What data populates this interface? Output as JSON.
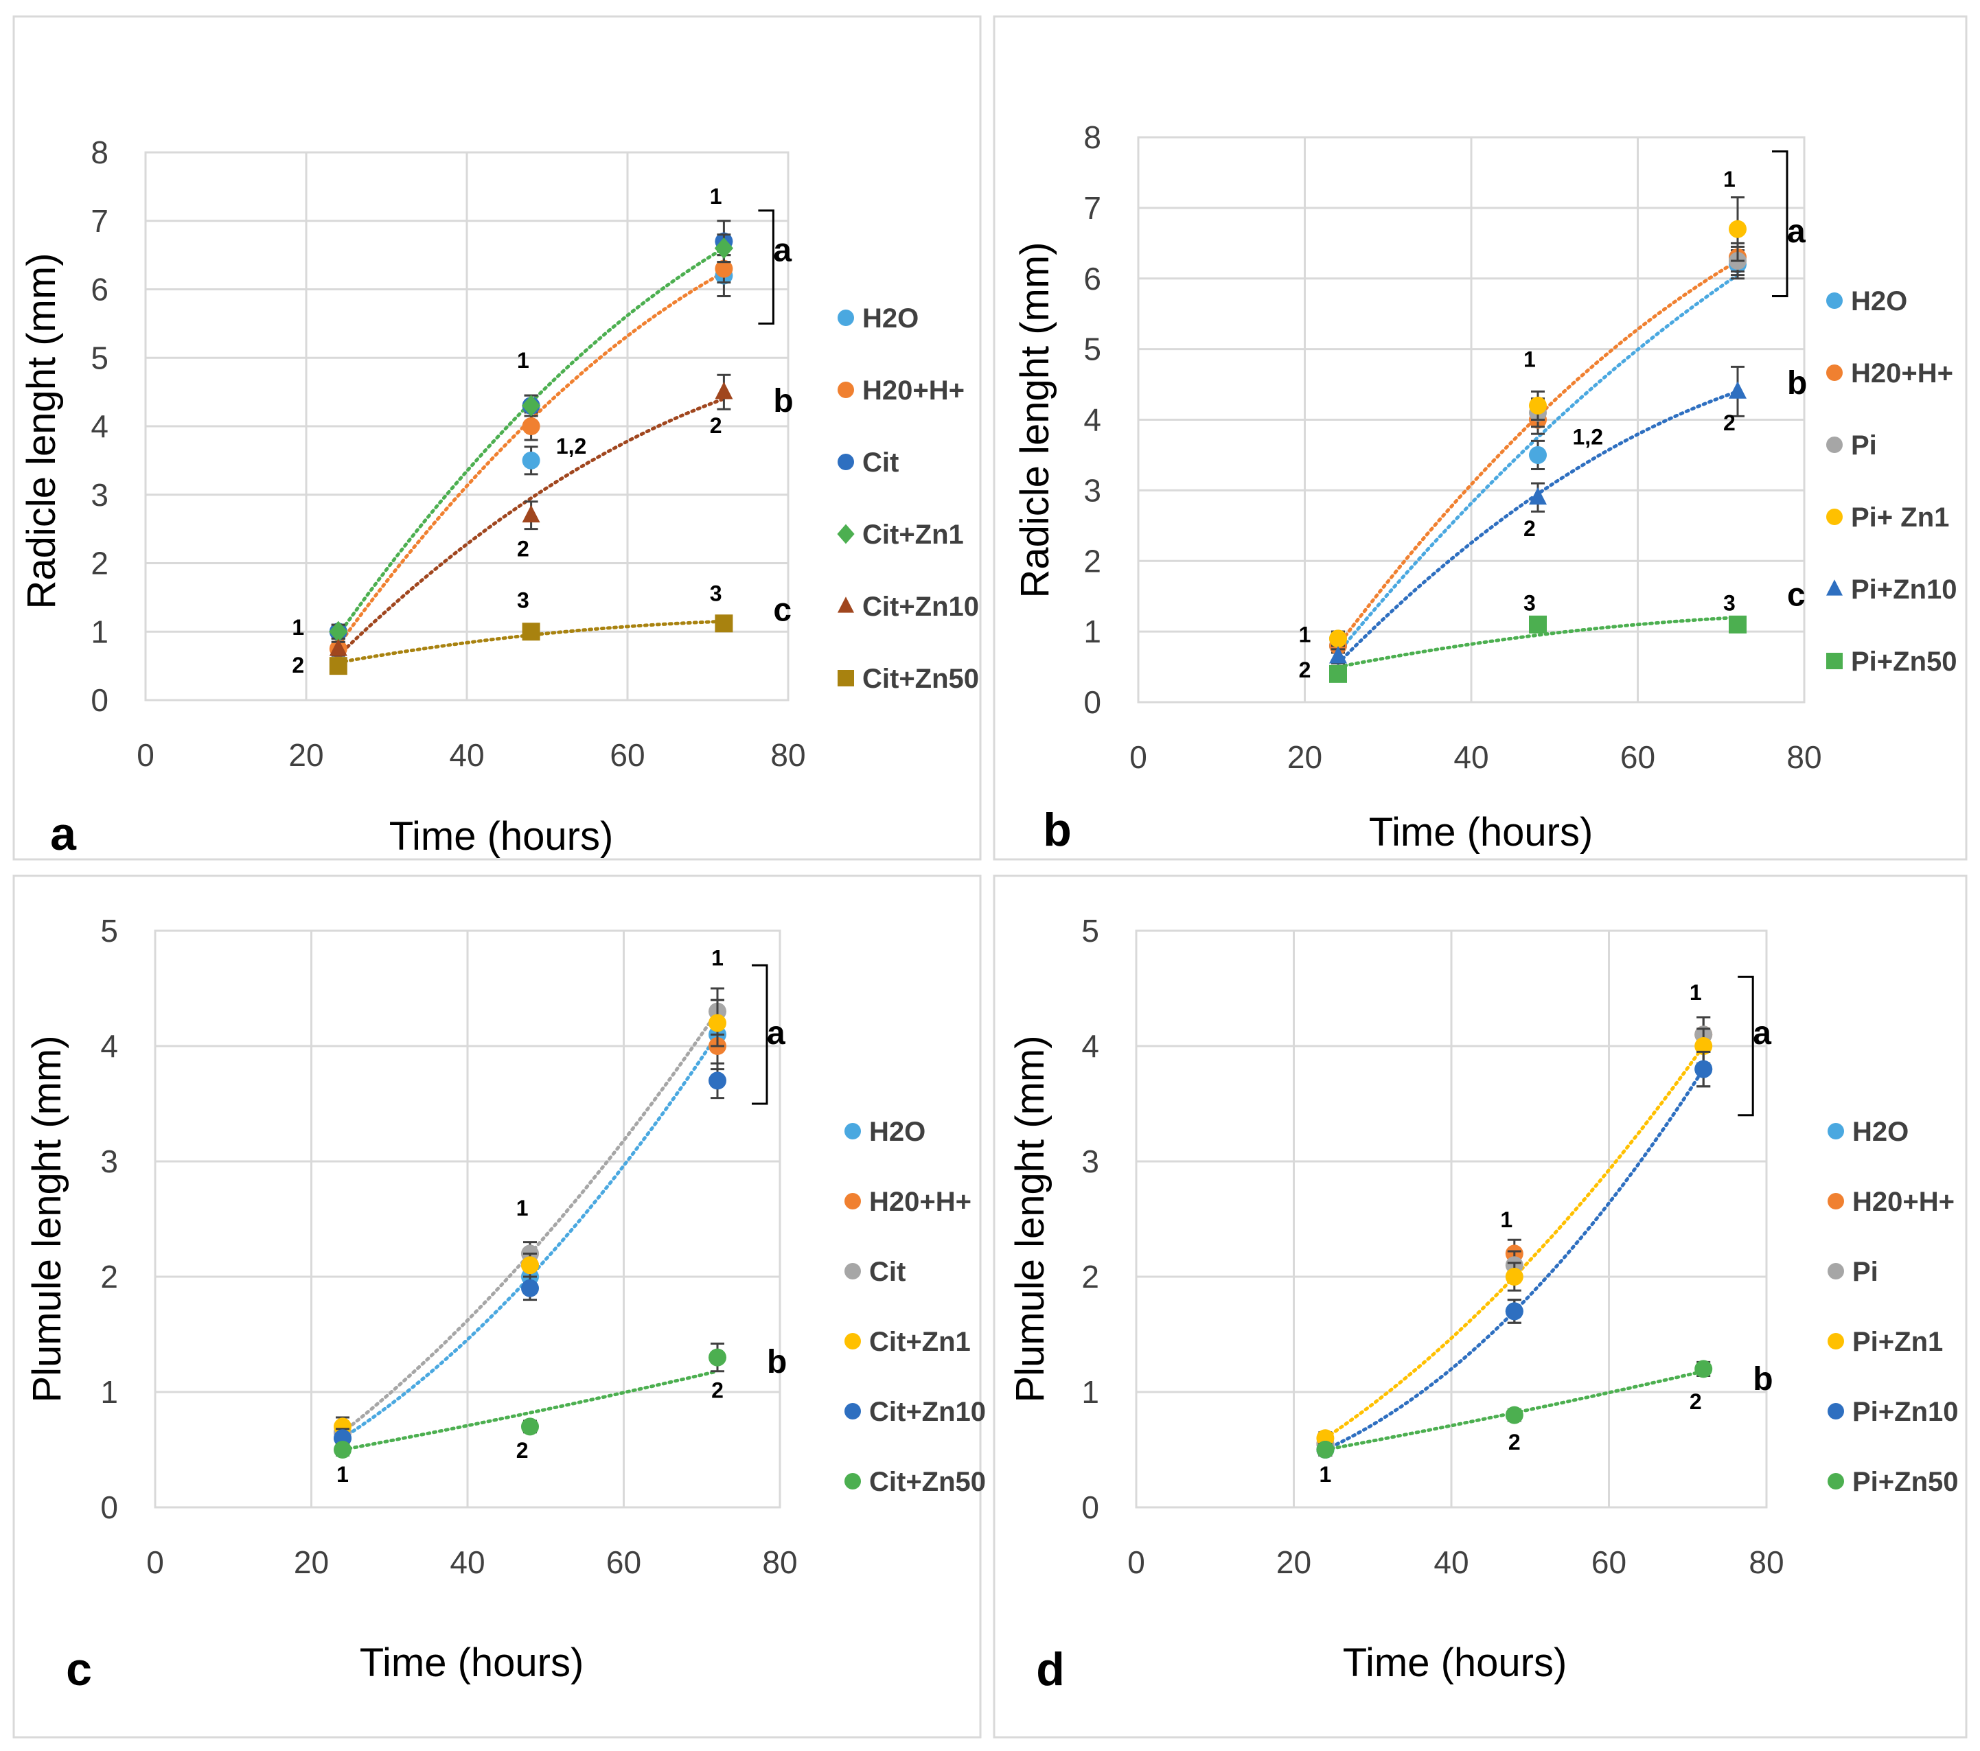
{
  "chart_data": [
    {
      "type": "scatter",
      "panel_label": "a",
      "xlabel": "Time (hours)",
      "ylabel": "Radicle lenght (mm)",
      "xlim": [
        0,
        80
      ],
      "ylim": [
        0,
        8
      ],
      "xticks": [
        "0",
        "20",
        "40",
        "60",
        "80"
      ],
      "yticks": [
        "0",
        "1",
        "2",
        "3",
        "4",
        "5",
        "6",
        "7",
        "8"
      ],
      "grid": true,
      "legend_position": "right",
      "x": [
        24,
        48,
        72
      ],
      "series": [
        {
          "name": "H2O",
          "color": "#4aa8e0",
          "marker": "circle",
          "values": [
            1.0,
            3.5,
            6.2
          ],
          "errors": [
            0.1,
            0.2,
            0.3
          ]
        },
        {
          "name": "H20+H+",
          "color": "#f08030",
          "marker": "circle",
          "values": [
            0.75,
            4.0,
            6.3
          ],
          "errors": [
            0.1,
            0.2,
            0.2
          ]
        },
        {
          "name": "Cit",
          "color": "#2e6fc0",
          "marker": "circle",
          "values": [
            1.0,
            4.3,
            6.7
          ],
          "errors": [
            0.1,
            0.15,
            0.3
          ]
        },
        {
          "name": "Cit+Zn1",
          "color": "#4caf50",
          "marker": "diamond",
          "values": [
            1.0,
            4.3,
            6.6
          ],
          "errors": [
            0.1,
            0.15,
            0.2
          ]
        },
        {
          "name": "Cit+Zn10",
          "color": "#a0461e",
          "marker": "triangle",
          "values": [
            0.75,
            2.7,
            4.5
          ],
          "errors": [
            0.1,
            0.2,
            0.25
          ]
        },
        {
          "name": "Cit+Zn50",
          "color": "#a8820f",
          "marker": "square",
          "values": [
            0.5,
            1.0,
            1.12
          ],
          "errors": [
            0.05,
            0.08,
            0.08
          ]
        }
      ],
      "trendlines": [
        {
          "series": "Cit+Zn1",
          "color": "#4caf50",
          "values": [
            0.95,
            4.35,
            6.6
          ]
        },
        {
          "series": "H20+H+",
          "color": "#f08030",
          "values": [
            0.8,
            4.1,
            6.25
          ]
        },
        {
          "series": "Cit+Zn10",
          "color": "#a0461e",
          "values": [
            0.65,
            2.95,
            4.4
          ]
        },
        {
          "series": "Cit+Zn50",
          "color": "#a8820f",
          "values": [
            0.55,
            0.95,
            1.15
          ]
        }
      ],
      "annotations": [
        {
          "text": "1",
          "x": 19,
          "y": 0.95
        },
        {
          "text": "2",
          "x": 19,
          "y": 0.4
        },
        {
          "text": "1",
          "x": 47,
          "y": 4.85
        },
        {
          "text": "1,2",
          "x": 53,
          "y": 3.6
        },
        {
          "text": "2",
          "x": 47,
          "y": 2.1
        },
        {
          "text": "3",
          "x": 47,
          "y": 1.35
        },
        {
          "text": "1",
          "x": 71,
          "y": 7.25
        },
        {
          "text": "2",
          "x": 71,
          "y": 3.9
        },
        {
          "text": "3",
          "x": 71,
          "y": 1.45
        }
      ],
      "group_labels": [
        {
          "text": "a",
          "y": 6.55
        },
        {
          "text": "b",
          "y": 4.35
        },
        {
          "text": "c",
          "y": 1.3
        }
      ],
      "bracket": {
        "y_top": 7.15,
        "y_bottom": 5.5
      }
    },
    {
      "type": "scatter",
      "panel_label": "b",
      "xlabel": "Time (hours)",
      "ylabel": "Radicle lenght (mm)",
      "xlim": [
        0,
        80
      ],
      "ylim": [
        0,
        8
      ],
      "xticks": [
        "0",
        "20",
        "40",
        "60",
        "80"
      ],
      "yticks": [
        "0",
        "1",
        "2",
        "3",
        "4",
        "5",
        "6",
        "7",
        "8"
      ],
      "grid": true,
      "legend_position": "right",
      "x": [
        24,
        48,
        72
      ],
      "series": [
        {
          "name": "H2O",
          "color": "#4aa8e0",
          "marker": "circle",
          "values": [
            0.8,
            3.5,
            6.2
          ],
          "errors": [
            0.1,
            0.2,
            0.2
          ]
        },
        {
          "name": "H20+H+",
          "color": "#f08030",
          "marker": "circle",
          "values": [
            0.8,
            4.0,
            6.3
          ],
          "errors": [
            0.1,
            0.2,
            0.2
          ]
        },
        {
          "name": "Pi",
          "color": "#a6a6a6",
          "marker": "circle",
          "values": [
            0.9,
            4.1,
            6.25
          ],
          "errors": [
            0.1,
            0.2,
            0.2
          ]
        },
        {
          "name": "Pi+ Zn1",
          "color": "#ffc000",
          "marker": "circle",
          "values": [
            0.9,
            4.2,
            6.7
          ],
          "errors": [
            0.1,
            0.2,
            0.45
          ]
        },
        {
          "name": "Pi+Zn10",
          "color": "#2e6fc0",
          "marker": "triangle",
          "values": [
            0.65,
            2.9,
            4.4
          ],
          "errors": [
            0.1,
            0.2,
            0.35
          ]
        },
        {
          "name": "Pi+Zn50",
          "color": "#4caf50",
          "marker": "square",
          "values": [
            0.4,
            1.1,
            1.1
          ],
          "errors": [
            0.05,
            0.1,
            0.08
          ]
        }
      ],
      "trendlines": [
        {
          "series": "H20+H+",
          "color": "#f08030",
          "values": [
            0.8,
            4.05,
            6.25
          ]
        },
        {
          "series": "H2O",
          "color": "#4aa8e0",
          "values": [
            0.7,
            3.75,
            6.05
          ]
        },
        {
          "series": "Pi+Zn10",
          "color": "#2e6fc0",
          "values": [
            0.55,
            2.95,
            4.4
          ]
        },
        {
          "series": "Pi+Zn50",
          "color": "#4caf50",
          "values": [
            0.5,
            0.95,
            1.2
          ]
        }
      ],
      "annotations": [
        {
          "text": "1",
          "x": 20,
          "y": 0.85
        },
        {
          "text": "2",
          "x": 20,
          "y": 0.35
        },
        {
          "text": "1",
          "x": 47,
          "y": 4.75
        },
        {
          "text": "1,2",
          "x": 54,
          "y": 3.65
        },
        {
          "text": "2",
          "x": 47,
          "y": 2.35
        },
        {
          "text": "3",
          "x": 47,
          "y": 1.3
        },
        {
          "text": "1",
          "x": 71,
          "y": 7.3
        },
        {
          "text": "2",
          "x": 71,
          "y": 3.85
        },
        {
          "text": "3",
          "x": 71,
          "y": 1.3
        }
      ],
      "group_labels": [
        {
          "text": "a",
          "y": 6.65
        },
        {
          "text": "b",
          "y": 4.5
        },
        {
          "text": "c",
          "y": 1.5
        }
      ],
      "bracket": {
        "y_top": 7.8,
        "y_bottom": 5.75
      }
    },
    {
      "type": "scatter",
      "panel_label": "c",
      "xlabel": "Time (hours)",
      "ylabel": "Plumule lenght (mm)",
      "xlim": [
        0,
        80
      ],
      "ylim": [
        0,
        5
      ],
      "xticks": [
        "0",
        "20",
        "40",
        "60",
        "80"
      ],
      "yticks": [
        "0",
        "1",
        "2",
        "3",
        "4",
        "5"
      ],
      "grid": true,
      "legend_position": "right",
      "x": [
        24,
        48,
        72
      ],
      "series": [
        {
          "name": "H2O",
          "color": "#4aa8e0",
          "marker": "circle",
          "values": [
            0.6,
            2.0,
            4.1
          ],
          "errors": [
            0.08,
            0.1,
            0.3
          ]
        },
        {
          "name": "H20+H+",
          "color": "#f08030",
          "marker": "circle",
          "values": [
            0.65,
            2.1,
            4.0
          ],
          "errors": [
            0.08,
            0.1,
            0.3
          ]
        },
        {
          "name": "Cit",
          "color": "#a6a6a6",
          "marker": "circle",
          "values": [
            0.65,
            2.2,
            4.3
          ],
          "errors": [
            0.08,
            0.1,
            0.2
          ]
        },
        {
          "name": "Cit+Zn1",
          "color": "#ffc000",
          "marker": "circle",
          "values": [
            0.7,
            2.1,
            4.2
          ],
          "errors": [
            0.08,
            0.1,
            0.2
          ]
        },
        {
          "name": "Cit+Zn10",
          "color": "#2e6fc0",
          "marker": "circle",
          "values": [
            0.6,
            1.9,
            3.7
          ],
          "errors": [
            0.08,
            0.1,
            0.15
          ]
        },
        {
          "name": "Cit+Zn50",
          "color": "#4caf50",
          "marker": "circle",
          "values": [
            0.5,
            0.7,
            1.3
          ],
          "errors": [
            0.05,
            0.05,
            0.12
          ]
        }
      ],
      "trendlines": [
        {
          "series": "Cit",
          "color": "#a6a6a6",
          "values": [
            0.65,
            2.2,
            4.3
          ]
        },
        {
          "series": "H2O",
          "color": "#4aa8e0",
          "values": [
            0.6,
            2.0,
            4.1
          ]
        },
        {
          "series": "Cit+Zn50",
          "color": "#4caf50",
          "values": [
            0.5,
            0.82,
            1.18
          ]
        }
      ],
      "annotations": [
        {
          "text": "1",
          "x": 24,
          "y": 0.22
        },
        {
          "text": "1",
          "x": 47,
          "y": 2.53
        },
        {
          "text": "2",
          "x": 47,
          "y": 0.43
        },
        {
          "text": "1",
          "x": 72,
          "y": 4.7
        },
        {
          "text": "2",
          "x": 72,
          "y": 0.95
        }
      ],
      "group_labels": [
        {
          "text": "a",
          "y": 4.1
        },
        {
          "text": "b",
          "y": 1.25
        }
      ],
      "bracket": {
        "y_top": 4.7,
        "y_bottom": 3.5
      }
    },
    {
      "type": "scatter",
      "panel_label": "d",
      "xlabel": "Time (hours)",
      "ylabel": "Plumule lenght (mm)",
      "xlim": [
        0,
        80
      ],
      "ylim": [
        0,
        5
      ],
      "xticks": [
        "0",
        "20",
        "40",
        "60",
        "80"
      ],
      "yticks": [
        "0",
        "1",
        "2",
        "3",
        "4",
        "5"
      ],
      "grid": true,
      "legend_position": "right",
      "x": [
        24,
        48,
        72
      ],
      "series": [
        {
          "name": "H2O",
          "color": "#4aa8e0",
          "marker": "circle",
          "values": [
            0.5,
            1.7,
            3.8
          ],
          "errors": [
            0.05,
            0.1,
            0.15
          ]
        },
        {
          "name": "H20+H+",
          "color": "#f08030",
          "marker": "circle",
          "values": [
            0.55,
            2.2,
            4.1
          ],
          "errors": [
            0.05,
            0.12,
            0.15
          ]
        },
        {
          "name": "Pi",
          "color": "#a6a6a6",
          "marker": "circle",
          "values": [
            0.55,
            2.1,
            4.1
          ],
          "errors": [
            0.05,
            0.12,
            0.15
          ]
        },
        {
          "name": "Pi+Zn1",
          "color": "#ffc000",
          "marker": "circle",
          "values": [
            0.6,
            2.0,
            4.0
          ],
          "errors": [
            0.05,
            0.12,
            0.15
          ]
        },
        {
          "name": "Pi+Zn10",
          "color": "#2e6fc0",
          "marker": "circle",
          "values": [
            0.5,
            1.7,
            3.8
          ],
          "errors": [
            0.05,
            0.1,
            0.15
          ]
        },
        {
          "name": "Pi+Zn50",
          "color": "#4caf50",
          "marker": "circle",
          "values": [
            0.5,
            0.8,
            1.2
          ],
          "errors": [
            0.05,
            0.05,
            0.06
          ]
        }
      ],
      "trendlines": [
        {
          "series": "Pi+Zn1",
          "color": "#ffc000",
          "values": [
            0.6,
            2.0,
            4.0
          ]
        },
        {
          "series": "Pi+Zn10",
          "color": "#2e6fc0",
          "values": [
            0.5,
            1.7,
            3.8
          ]
        },
        {
          "series": "Pi+Zn50",
          "color": "#4caf50",
          "values": [
            0.5,
            0.82,
            1.18
          ]
        }
      ],
      "annotations": [
        {
          "text": "1",
          "x": 24,
          "y": 0.22
        },
        {
          "text": "1",
          "x": 47,
          "y": 2.43
        },
        {
          "text": "2",
          "x": 48,
          "y": 0.5
        },
        {
          "text": "1",
          "x": 71,
          "y": 4.4
        },
        {
          "text": "2",
          "x": 71,
          "y": 0.85
        }
      ],
      "group_labels": [
        {
          "text": "a",
          "y": 4.1
        },
        {
          "text": "b",
          "y": 1.1
        }
      ],
      "bracket": {
        "y_top": 4.6,
        "y_bottom": 3.4
      }
    }
  ]
}
